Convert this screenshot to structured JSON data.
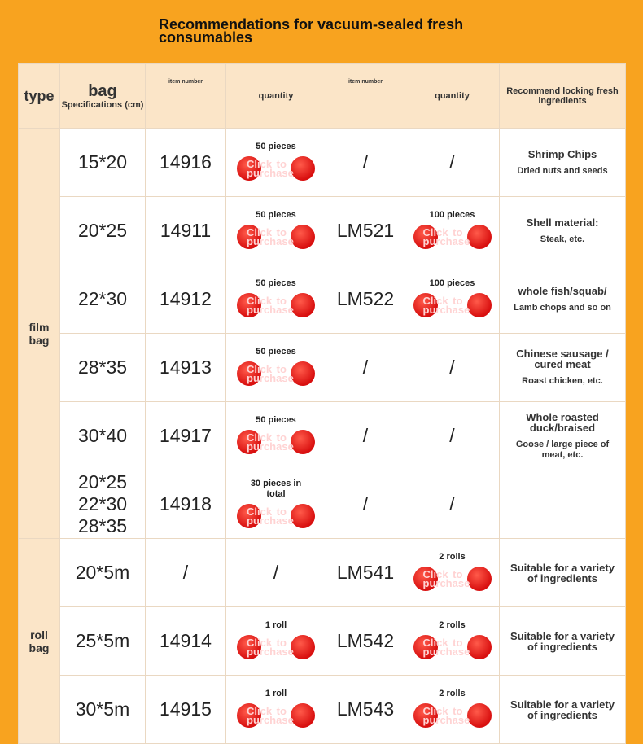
{
  "header": {
    "title": "Recommendations for vacuum-sealed fresh consumables"
  },
  "table": {
    "columns": [
      {
        "label": "type"
      },
      {
        "label": "bag",
        "sub": "Specifications (cm)"
      },
      {
        "label": "item number"
      },
      {
        "label": "quantity"
      },
      {
        "label": "item number"
      },
      {
        "label": "quantity"
      },
      {
        "label": "Recommend locking fresh ingredients"
      }
    ],
    "button_label": "Click to purchase",
    "groups": [
      {
        "type": "film bag",
        "rows": [
          {
            "spec": "15*20",
            "item1": "14916",
            "qty1": "50 pieces",
            "item2": "/",
            "qty2": "/",
            "recommend": [
              "Shrimp Chips",
              "Dried nuts and seeds"
            ]
          },
          {
            "spec": "20*25",
            "item1": "14911",
            "qty1": "50 pieces",
            "item2": "LM521",
            "qty2": "100 pieces",
            "recommend": [
              "Shell material:",
              "Steak, etc."
            ]
          },
          {
            "spec": "22*30",
            "item1": "14912",
            "qty1": "50 pieces",
            "item2": "LM522",
            "qty2": "100 pieces",
            "recommend": [
              "whole fish/squab/",
              "Lamb chops and so on"
            ]
          },
          {
            "spec": "28*35",
            "item1": "14913",
            "qty1": "50 pieces",
            "item2": "/",
            "qty2": "/",
            "recommend": [
              "Chinese sausage / cured meat",
              "Roast chicken, etc."
            ]
          },
          {
            "spec": "30*40",
            "item1": "14917",
            "qty1": "50 pieces",
            "item2": "/",
            "qty2": "/",
            "recommend": [
              "Whole roasted duck/braised",
              "Goose / large piece of meat, etc."
            ]
          },
          {
            "spec": "20*25\n22*30\n28*35",
            "item1": "14918",
            "qty1": "30 pieces in total",
            "item2": "/",
            "qty2": "/",
            "recommend": []
          }
        ]
      },
      {
        "type": "roll bag",
        "rows": [
          {
            "spec": "20*5m",
            "item1": "/",
            "qty1": "/",
            "item2": "LM541",
            "qty2": "2 rolls",
            "recommend": [
              "Suitable for a variety of ingredients"
            ]
          },
          {
            "spec": "25*5m",
            "item1": "14914",
            "qty1": "1 roll",
            "item2": "LM542",
            "qty2": "2 rolls",
            "recommend": [
              "Suitable for a variety of ingredients"
            ]
          },
          {
            "spec": "30*5m",
            "item1": "14915",
            "qty1": "1 roll",
            "item2": "LM543",
            "qty2": "2 rolls",
            "recommend": [
              "Suitable for a variety of ingredients"
            ]
          }
        ]
      }
    ]
  }
}
